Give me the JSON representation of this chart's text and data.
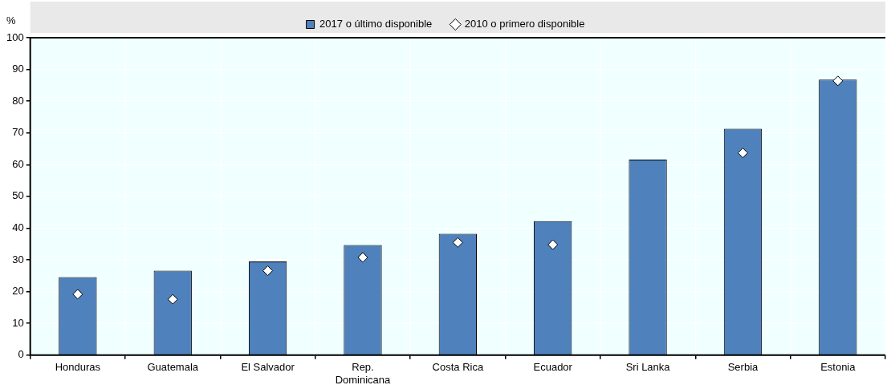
{
  "chart_data": {
    "type": "bar",
    "ylabel": "%",
    "categories": [
      "Honduras",
      "Guatemala",
      "El Salvador",
      "Rep. Dominicana",
      "Costa Rica",
      "Ecuador",
      "Sri Lanka",
      "Serbia",
      "Estonia"
    ],
    "series": [
      {
        "name": "2017 o último disponible",
        "color": "#4f81bd",
        "values": [
          24.6,
          26.6,
          29.5,
          34.7,
          38.2,
          42.2,
          61.6,
          71.3,
          86.8
        ]
      },
      {
        "name": "2010 o primero disponible",
        "type": "scatter",
        "marker": "diamond",
        "color": "#ffffff",
        "x": [
          "Honduras",
          "Guatemala",
          "El Salvador",
          "Rep. Dominicana",
          "Costa Rica",
          "Ecuador",
          "Sri Lanka",
          "Serbia",
          "Estonia"
        ],
        "values": [
          19.2,
          17.6,
          26.6,
          30.8,
          35.5,
          34.8,
          null,
          63.7,
          86.4
        ]
      }
    ],
    "ylim": [
      0,
      100
    ],
    "yticks": [
      0,
      10,
      20,
      30,
      40,
      50,
      60,
      70,
      80,
      90,
      100
    ],
    "grid": true,
    "legend": "top"
  }
}
